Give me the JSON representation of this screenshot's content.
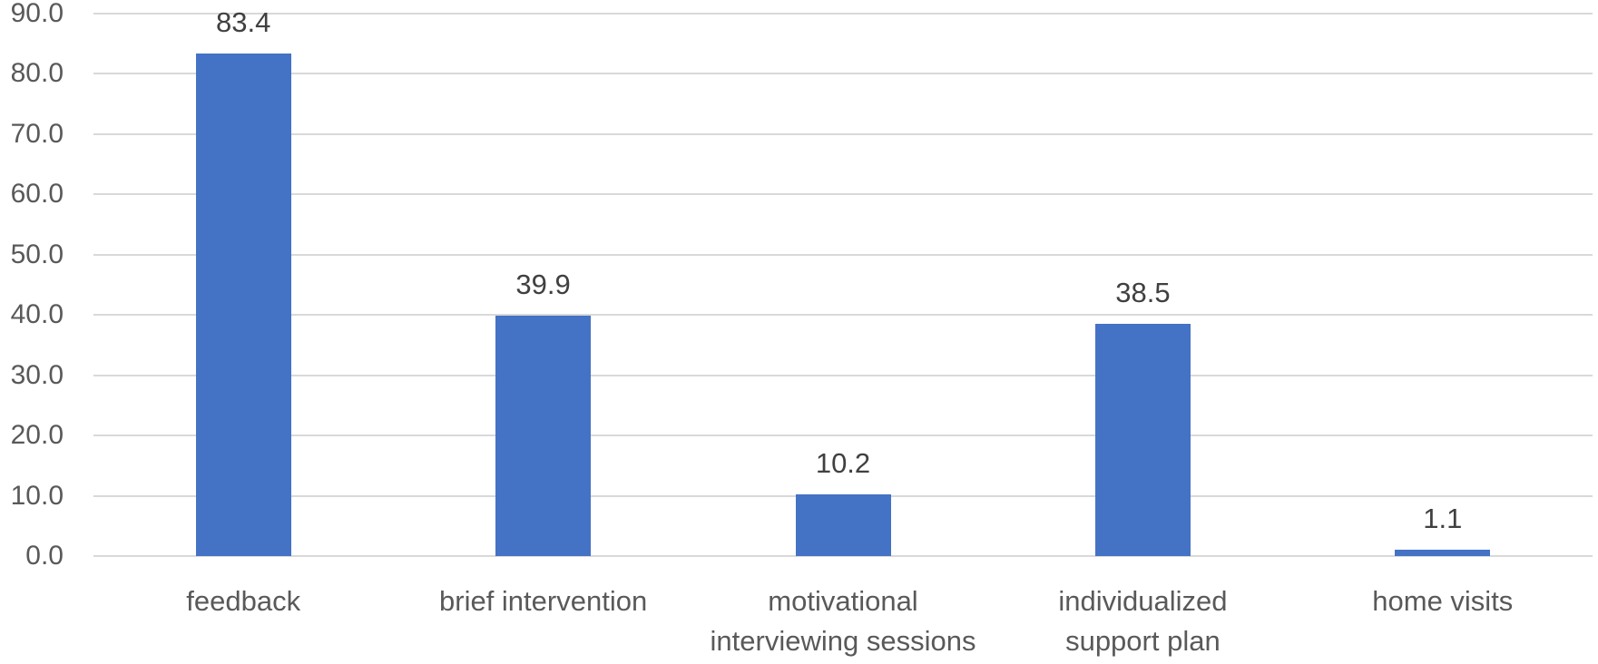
{
  "chart_data": {
    "type": "bar",
    "categories": [
      "feedback",
      "brief intervention",
      "motivational interviewing sessions",
      "individualized support plan",
      "home visits"
    ],
    "category_lines": [
      [
        "feedback"
      ],
      [
        "brief intervention"
      ],
      [
        "motivational",
        "interviewing sessions"
      ],
      [
        "individualized",
        "support plan"
      ],
      [
        "home visits"
      ]
    ],
    "values": [
      83.4,
      39.9,
      10.2,
      38.5,
      1.1
    ],
    "data_labels": [
      "83.4",
      "39.9",
      "10.2",
      "38.5",
      "1.1"
    ],
    "title": "",
    "xlabel": "",
    "ylabel": "",
    "ylim": [
      0,
      90
    ],
    "ytick_step": 10,
    "ytick_labels": [
      "0.0",
      "10.0",
      "20.0",
      "30.0",
      "40.0",
      "50.0",
      "60.0",
      "70.0",
      "80.0",
      "90.0"
    ],
    "grid": true,
    "legend": "none",
    "colors": {
      "bar": "#4472C4",
      "gridline": "#D9D9D9",
      "axis_text": "#595959",
      "data_label_text": "#404040",
      "background": "#FFFFFF"
    }
  }
}
